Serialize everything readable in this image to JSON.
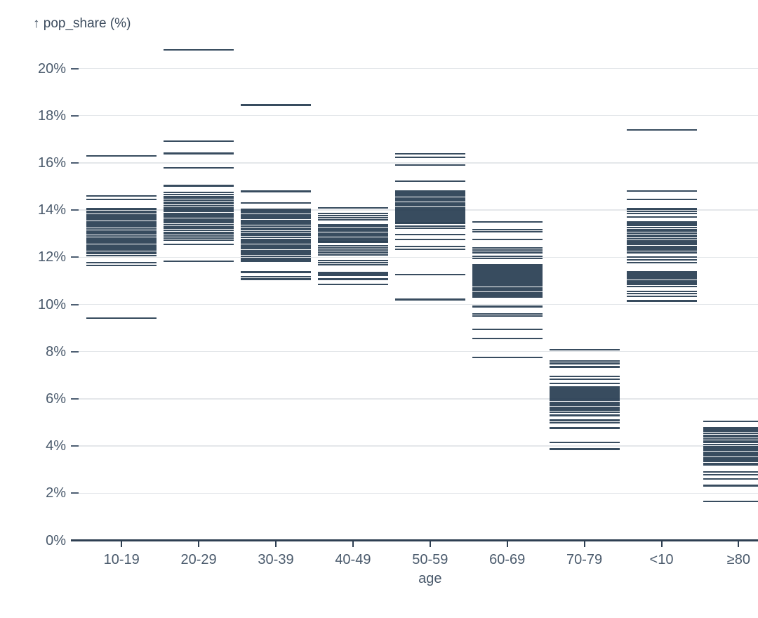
{
  "chart_data": {
    "type": "tick",
    "title": "↑ pop_share (%)",
    "ylabel": "pop_share (%)",
    "xlabel": "age",
    "y_tick_values": [
      0,
      2,
      4,
      6,
      8,
      10,
      12,
      14,
      16,
      18,
      20
    ],
    "y_tick_labels": [
      "0%",
      "2%",
      "4%",
      "6%",
      "8%",
      "10%",
      "12%",
      "14%",
      "16%",
      "18%",
      "20%"
    ],
    "ylim": [
      0,
      21.5
    ],
    "grid": true,
    "categories": [
      "10-19",
      "20-29",
      "30-39",
      "40-49",
      "50-59",
      "60-69",
      "70-79",
      "<10",
      "≥80"
    ],
    "series": [
      {
        "category": "10-19",
        "values": [
          16.3,
          14.6,
          14.45,
          14.05,
          13.95,
          13.88,
          13.8,
          13.72,
          13.65,
          13.58,
          13.5,
          13.42,
          13.35,
          13.28,
          13.2,
          13.12,
          13.05,
          12.98,
          12.9,
          12.82,
          12.75,
          12.68,
          12.6,
          12.52,
          12.45,
          12.38,
          12.3,
          12.22,
          12.15,
          12.08,
          11.78,
          11.66,
          9.43
        ]
      },
      {
        "category": "20-29",
        "values": [
          20.8,
          16.92,
          16.4,
          15.8,
          15.03,
          14.74,
          14.66,
          14.58,
          14.5,
          14.42,
          14.34,
          14.26,
          14.18,
          14.1,
          14.02,
          13.94,
          13.86,
          13.78,
          13.7,
          13.62,
          13.54,
          13.46,
          13.38,
          13.3,
          13.22,
          13.14,
          13.06,
          12.98,
          12.9,
          12.82,
          12.73,
          12.55,
          11.83
        ]
      },
      {
        "category": "30-39",
        "values": [
          18.45,
          14.79,
          14.29,
          14.04,
          13.96,
          13.88,
          13.8,
          13.72,
          13.64,
          13.56,
          13.48,
          13.4,
          13.32,
          13.24,
          13.16,
          13.08,
          13.0,
          12.92,
          12.84,
          12.76,
          12.68,
          12.6,
          12.52,
          12.44,
          12.36,
          12.28,
          12.2,
          12.12,
          12.04,
          11.96,
          11.88,
          11.82,
          11.37,
          11.17,
          11.07
        ]
      },
      {
        "category": "40-49",
        "values": [
          14.1,
          13.85,
          13.76,
          13.67,
          13.58,
          13.38,
          13.31,
          13.24,
          13.17,
          13.1,
          13.03,
          12.96,
          12.89,
          12.82,
          12.75,
          12.68,
          12.63,
          12.48,
          12.4,
          12.3,
          12.2,
          12.11,
          11.86,
          11.77,
          11.68,
          11.34,
          11.25,
          11.07,
          10.86
        ]
      },
      {
        "category": "50-59",
        "values": [
          16.38,
          16.24,
          15.9,
          15.22,
          14.8,
          14.73,
          14.66,
          14.59,
          14.52,
          14.45,
          14.38,
          14.31,
          14.24,
          14.17,
          14.1,
          14.03,
          13.96,
          13.89,
          13.82,
          13.75,
          13.68,
          13.61,
          13.54,
          13.47,
          13.43,
          13.31,
          13.22,
          12.95,
          12.75,
          12.45,
          12.33,
          11.27,
          10.21
        ]
      },
      {
        "category": "60-69",
        "values": [
          13.49,
          13.18,
          13.08,
          12.76,
          12.4,
          12.3,
          12.2,
          12.05,
          11.95,
          11.69,
          11.62,
          11.55,
          11.48,
          11.41,
          11.34,
          11.27,
          11.2,
          11.13,
          11.06,
          10.99,
          10.92,
          10.85,
          10.78,
          10.71,
          10.64,
          10.57,
          10.5,
          10.43,
          10.38,
          10.31,
          9.91,
          9.61,
          9.51,
          8.95,
          8.55,
          7.76
        ]
      },
      {
        "category": "70-79",
        "values": [
          8.08,
          7.6,
          7.5,
          7.35,
          6.95,
          6.82,
          6.66,
          6.49,
          6.42,
          6.35,
          6.28,
          6.21,
          6.14,
          6.07,
          6.0,
          5.93,
          5.86,
          5.79,
          5.72,
          5.65,
          5.58,
          5.51,
          5.44,
          5.3,
          5.09,
          4.99,
          4.76,
          4.15,
          3.87
        ]
      },
      {
        "category": "<10",
        "values": [
          17.4,
          14.8,
          14.45,
          14.05,
          13.95,
          13.85,
          13.7,
          13.5,
          13.42,
          13.34,
          13.26,
          13.18,
          13.1,
          13.02,
          12.94,
          12.86,
          12.78,
          12.7,
          12.62,
          12.54,
          12.46,
          12.38,
          12.3,
          12.2,
          12.0,
          11.88,
          11.78,
          11.37,
          11.28,
          11.19,
          11.1,
          11.0,
          10.92,
          10.85,
          10.77,
          10.55,
          10.45,
          10.35,
          10.15
        ]
      },
      {
        "category": "≥80",
        "values": [
          5.05,
          4.78,
          4.7,
          4.62,
          4.54,
          4.46,
          4.38,
          4.3,
          4.22,
          4.14,
          4.06,
          3.98,
          3.9,
          3.82,
          3.74,
          3.66,
          3.58,
          3.5,
          3.42,
          3.34,
          3.27,
          3.2,
          2.9,
          2.78,
          2.6,
          2.32,
          1.65
        ]
      }
    ],
    "legend": null,
    "colors": {
      "tick": "#1d3349",
      "grid": "#e4e7ea",
      "axis": "#2e3f52",
      "text": "#4a5a6c",
      "title_text": "#3d4c5e",
      "background": "#ffffff"
    }
  }
}
